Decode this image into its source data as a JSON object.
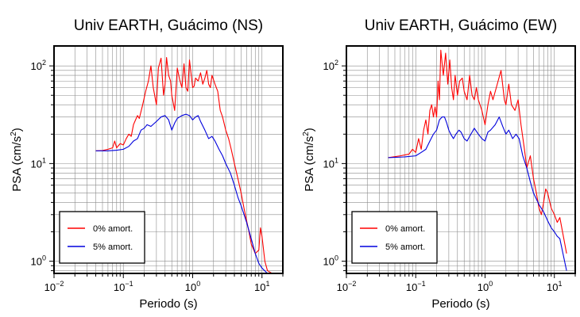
{
  "chart_data": [
    {
      "type": "line",
      "title": "Univ EARTH, Guácimo (NS)",
      "xlabel": "Periodo (s)",
      "ylabel_main": "PSA (cm/s",
      "ylabel_sup": "2",
      "ylabel_close": ")",
      "xscale": "log",
      "yscale": "log",
      "xlim": [
        0.01,
        20
      ],
      "ylim": [
        0.75,
        160
      ],
      "grid": true,
      "legend_position": "bottom-left",
      "x_tick_labels": [
        {
          "value": 0.01,
          "base": "10",
          "exp": "−2"
        },
        {
          "value": 0.1,
          "base": "10",
          "exp": "−1"
        },
        {
          "value": 1,
          "base": "10",
          "exp": "0"
        },
        {
          "value": 10,
          "base": "10",
          "exp": "1"
        }
      ],
      "y_tick_labels": [
        {
          "value": 1,
          "base": "10",
          "exp": "0"
        },
        {
          "value": 10,
          "base": "10",
          "exp": "1"
        },
        {
          "value": 100,
          "base": "10",
          "exp": "2"
        }
      ],
      "series": [
        {
          "name": "0% amort.",
          "color": "#ff0000",
          "points": [
            [
              0.04,
              13.5
            ],
            [
              0.05,
              13.6
            ],
            [
              0.06,
              14
            ],
            [
              0.07,
              14.5
            ],
            [
              0.075,
              17
            ],
            [
              0.08,
              14.5
            ],
            [
              0.09,
              16
            ],
            [
              0.1,
              15.5
            ],
            [
              0.11,
              18
            ],
            [
              0.12,
              20
            ],
            [
              0.13,
              19
            ],
            [
              0.14,
              25
            ],
            [
              0.15,
              28
            ],
            [
              0.16,
              31
            ],
            [
              0.17,
              29
            ],
            [
              0.19,
              40
            ],
            [
              0.21,
              55
            ],
            [
              0.23,
              70
            ],
            [
              0.25,
              100
            ],
            [
              0.27,
              60
            ],
            [
              0.3,
              40
            ],
            [
              0.32,
              95
            ],
            [
              0.35,
              120
            ],
            [
              0.38,
              50
            ],
            [
              0.4,
              65
            ],
            [
              0.42,
              122
            ],
            [
              0.45,
              80
            ],
            [
              0.48,
              70
            ],
            [
              0.5,
              50
            ],
            [
              0.55,
              35
            ],
            [
              0.6,
              95
            ],
            [
              0.65,
              72
            ],
            [
              0.7,
              60
            ],
            [
              0.75,
              105
            ],
            [
              0.8,
              60
            ],
            [
              0.85,
              55
            ],
            [
              0.9,
              115
            ],
            [
              1.0,
              60
            ],
            [
              1.05,
              62
            ],
            [
              1.1,
              75
            ],
            [
              1.2,
              70
            ],
            [
              1.3,
              85
            ],
            [
              1.4,
              65
            ],
            [
              1.5,
              75
            ],
            [
              1.6,
              90
            ],
            [
              1.7,
              65
            ],
            [
              1.8,
              60
            ],
            [
              1.9,
              80
            ],
            [
              2.1,
              65
            ],
            [
              2.3,
              55
            ],
            [
              2.5,
              35
            ],
            [
              2.7,
              30
            ],
            [
              3.0,
              22
            ],
            [
              3.3,
              18
            ],
            [
              3.6,
              14
            ],
            [
              4.0,
              10
            ],
            [
              4.5,
              7
            ],
            [
              5.0,
              5
            ],
            [
              5.5,
              3.5
            ],
            [
              6.0,
              2.6
            ],
            [
              6.5,
              2.0
            ],
            [
              7.0,
              1.5
            ],
            [
              8.0,
              1.2
            ],
            [
              9.0,
              1.3
            ],
            [
              9.5,
              2.2
            ],
            [
              10,
              1.8
            ],
            [
              11,
              1.0
            ],
            [
              12,
              0.8
            ],
            [
              14,
              0.75
            ],
            [
              15,
              0.75
            ]
          ]
        },
        {
          "name": "5% amort.",
          "color": "#0000dd",
          "points": [
            [
              0.04,
              13.5
            ],
            [
              0.06,
              13.5
            ],
            [
              0.08,
              13.7
            ],
            [
              0.1,
              14
            ],
            [
              0.12,
              15
            ],
            [
              0.14,
              17
            ],
            [
              0.16,
              18
            ],
            [
              0.18,
              22
            ],
            [
              0.2,
              23
            ],
            [
              0.22,
              25
            ],
            [
              0.25,
              24
            ],
            [
              0.3,
              27
            ],
            [
              0.35,
              30
            ],
            [
              0.4,
              31
            ],
            [
              0.45,
              28
            ],
            [
              0.5,
              22
            ],
            [
              0.55,
              26
            ],
            [
              0.6,
              29
            ],
            [
              0.7,
              31
            ],
            [
              0.8,
              32
            ],
            [
              0.9,
              31
            ],
            [
              1.0,
              28
            ],
            [
              1.1,
              30
            ],
            [
              1.2,
              31
            ],
            [
              1.3,
              27
            ],
            [
              1.5,
              22
            ],
            [
              1.7,
              18
            ],
            [
              1.9,
              19
            ],
            [
              2.1,
              17
            ],
            [
              2.4,
              14
            ],
            [
              2.7,
              12
            ],
            [
              3.0,
              10
            ],
            [
              3.5,
              8
            ],
            [
              4.0,
              6
            ],
            [
              4.5,
              4.5
            ],
            [
              5.0,
              3.7
            ],
            [
              6.0,
              2.5
            ],
            [
              7.0,
              1.7
            ],
            [
              8.0,
              1.2
            ],
            [
              9.0,
              0.95
            ],
            [
              10,
              0.85
            ],
            [
              12,
              0.75
            ],
            [
              15,
              0.75
            ]
          ]
        }
      ]
    },
    {
      "type": "line",
      "title": "Univ EARTH, Guácimo (EW)",
      "xlabel": "Periodo (s)",
      "ylabel_main": "PSA (cm/s",
      "ylabel_sup": "2",
      "ylabel_close": ")",
      "xscale": "log",
      "yscale": "log",
      "xlim": [
        0.01,
        20
      ],
      "ylim": [
        0.75,
        160
      ],
      "grid": true,
      "legend_position": "bottom-left",
      "x_tick_labels": [
        {
          "value": 0.01,
          "base": "10",
          "exp": "−2"
        },
        {
          "value": 0.1,
          "base": "10",
          "exp": "−1"
        },
        {
          "value": 1,
          "base": "10",
          "exp": "0"
        },
        {
          "value": 10,
          "base": "10",
          "exp": "1"
        }
      ],
      "y_tick_labels": [
        {
          "value": 1,
          "base": "10",
          "exp": "0"
        },
        {
          "value": 10,
          "base": "10",
          "exp": "1"
        },
        {
          "value": 100,
          "base": "10",
          "exp": "2"
        }
      ],
      "series": [
        {
          "name": "0% amort.",
          "color": "#ff0000",
          "points": [
            [
              0.04,
              11.5
            ],
            [
              0.06,
              12
            ],
            [
              0.08,
              12.5
            ],
            [
              0.09,
              14
            ],
            [
              0.1,
              13
            ],
            [
              0.11,
              18
            ],
            [
              0.12,
              14
            ],
            [
              0.13,
              22
            ],
            [
              0.14,
              28
            ],
            [
              0.15,
              20
            ],
            [
              0.16,
              35
            ],
            [
              0.17,
              40
            ],
            [
              0.18,
              30
            ],
            [
              0.19,
              38
            ],
            [
              0.2,
              30
            ],
            [
              0.21,
              70
            ],
            [
              0.22,
              45
            ],
            [
              0.23,
              145
            ],
            [
              0.25,
              80
            ],
            [
              0.27,
              135
            ],
            [
              0.29,
              65
            ],
            [
              0.31,
              115
            ],
            [
              0.33,
              60
            ],
            [
              0.35,
              45
            ],
            [
              0.37,
              80
            ],
            [
              0.4,
              50
            ],
            [
              0.43,
              70
            ],
            [
              0.47,
              75
            ],
            [
              0.5,
              55
            ],
            [
              0.55,
              45
            ],
            [
              0.6,
              80
            ],
            [
              0.65,
              50
            ],
            [
              0.7,
              45
            ],
            [
              0.75,
              60
            ],
            [
              0.8,
              45
            ],
            [
              0.9,
              35
            ],
            [
              1.0,
              25
            ],
            [
              1.1,
              40
            ],
            [
              1.2,
              55
            ],
            [
              1.3,
              45
            ],
            [
              1.5,
              65
            ],
            [
              1.7,
              90
            ],
            [
              1.9,
              45
            ],
            [
              2.0,
              40
            ],
            [
              2.2,
              65
            ],
            [
              2.4,
              40
            ],
            [
              2.7,
              35
            ],
            [
              3.0,
              45
            ],
            [
              3.3,
              25
            ],
            [
              3.7,
              14
            ],
            [
              4.0,
              9
            ],
            [
              4.5,
              12
            ],
            [
              5.0,
              7
            ],
            [
              5.5,
              5
            ],
            [
              6.0,
              3.5
            ],
            [
              6.5,
              3.0
            ],
            [
              7.0,
              4.0
            ],
            [
              7.5,
              5.5
            ],
            [
              8.0,
              5.0
            ],
            [
              9.0,
              3.5
            ],
            [
              10,
              3.0
            ],
            [
              11,
              2.5
            ],
            [
              12,
              2.8
            ],
            [
              15,
              1.2
            ]
          ]
        },
        {
          "name": "5% amort.",
          "color": "#0000dd",
          "points": [
            [
              0.04,
              11.5
            ],
            [
              0.07,
              11.7
            ],
            [
              0.1,
              12
            ],
            [
              0.12,
              13
            ],
            [
              0.14,
              14
            ],
            [
              0.16,
              17
            ],
            [
              0.18,
              20
            ],
            [
              0.2,
              22
            ],
            [
              0.22,
              28
            ],
            [
              0.24,
              30
            ],
            [
              0.26,
              30
            ],
            [
              0.28,
              26
            ],
            [
              0.3,
              22
            ],
            [
              0.32,
              20
            ],
            [
              0.35,
              18
            ],
            [
              0.38,
              20
            ],
            [
              0.42,
              22
            ],
            [
              0.45,
              21
            ],
            [
              0.5,
              18
            ],
            [
              0.55,
              17
            ],
            [
              0.6,
              19
            ],
            [
              0.7,
              23
            ],
            [
              0.8,
              20
            ],
            [
              0.9,
              18
            ],
            [
              1.0,
              17
            ],
            [
              1.1,
              21
            ],
            [
              1.2,
              22
            ],
            [
              1.4,
              25
            ],
            [
              1.6,
              30
            ],
            [
              1.8,
              24
            ],
            [
              2.0,
              20
            ],
            [
              2.2,
              22
            ],
            [
              2.5,
              18
            ],
            [
              2.8,
              20
            ],
            [
              3.1,
              18
            ],
            [
              3.5,
              12
            ],
            [
              4.0,
              9
            ],
            [
              4.5,
              6.5
            ],
            [
              5.0,
              5
            ],
            [
              6.0,
              3.8
            ],
            [
              7.0,
              3.2
            ],
            [
              8.0,
              2.6
            ],
            [
              9.0,
              2.2
            ],
            [
              10,
              2.0
            ],
            [
              11,
              1.8
            ],
            [
              12,
              1.7
            ],
            [
              15,
              0.8
            ]
          ]
        }
      ]
    }
  ]
}
